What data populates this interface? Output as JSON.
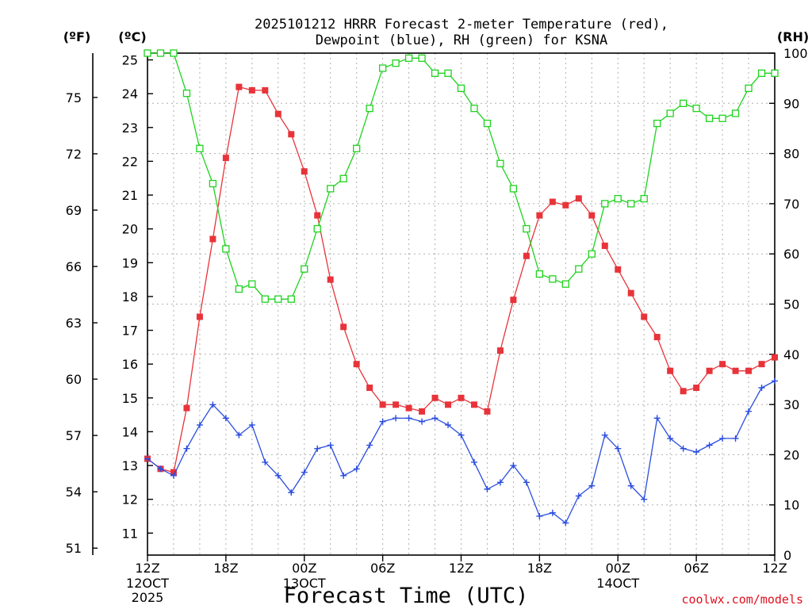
{
  "chart_data": {
    "type": "line",
    "title_line1": "2025101212 HRRR Forecast 2-meter Temperature (red),",
    "title_line2": "Dewpoint (blue), RH (green) for KSNA",
    "units": {
      "fahrenheit": "(ºF)",
      "celsius": "(ºC)",
      "rh": "(RH)"
    },
    "xlabel": "Forecast Time (UTC)",
    "credit": "coolwx.com/models",
    "x_ticks": [
      {
        "hour": 0,
        "label": "12Z",
        "sub1": "12OCT",
        "sub2": "2025"
      },
      {
        "hour": 6,
        "label": "18Z",
        "sub1": "",
        "sub2": ""
      },
      {
        "hour": 12,
        "label": "00Z",
        "sub1": "13OCT",
        "sub2": ""
      },
      {
        "hour": 18,
        "label": "06Z",
        "sub1": "",
        "sub2": ""
      },
      {
        "hour": 24,
        "label": "12Z",
        "sub1": "",
        "sub2": ""
      },
      {
        "hour": 30,
        "label": "18Z",
        "sub1": "",
        "sub2": ""
      },
      {
        "hour": 36,
        "label": "00Z",
        "sub1": "14OCT",
        "sub2": ""
      },
      {
        "hour": 42,
        "label": "06Z",
        "sub1": "",
        "sub2": ""
      },
      {
        "hour": 48,
        "label": "12Z",
        "sub1": "",
        "sub2": ""
      }
    ],
    "xlim": [
      0,
      48
    ],
    "celsius_axis": {
      "ylim": [
        10.35,
        25.2
      ],
      "ticks": [
        11,
        12,
        13,
        14,
        15,
        16,
        17,
        18,
        19,
        20,
        21,
        22,
        23,
        24,
        25
      ]
    },
    "fahrenheit_ticks": [
      51,
      54,
      57,
      60,
      63,
      66,
      69,
      72,
      75
    ],
    "rh_axis": {
      "ylim": [
        0,
        100
      ],
      "ticks": [
        0,
        10,
        20,
        30,
        40,
        50,
        60,
        70,
        80,
        90,
        100
      ]
    },
    "grid": true,
    "series": [
      {
        "name": "Temperature",
        "axis": "celsius",
        "color": "#e8333a",
        "marker": "filled-square",
        "values": [
          13.2,
          12.9,
          12.8,
          14.7,
          17.4,
          19.7,
          22.1,
          24.2,
          24.1,
          24.1,
          23.4,
          22.8,
          21.7,
          20.4,
          18.5,
          17.1,
          16.0,
          15.3,
          14.8,
          14.8,
          14.7,
          14.6,
          15.0,
          14.8,
          15.0,
          14.8,
          14.6,
          16.4,
          17.9,
          19.2,
          20.4,
          20.8,
          20.7,
          20.9,
          20.4,
          19.5,
          18.8,
          18.1,
          17.4,
          16.8,
          15.8,
          15.2,
          15.3,
          15.8,
          16.0,
          15.8,
          15.8,
          16.0,
          16.2
        ]
      },
      {
        "name": "Dewpoint",
        "axis": "celsius",
        "color": "#2a4de0",
        "marker": "plus",
        "values": [
          13.2,
          12.9,
          12.7,
          13.5,
          14.2,
          14.8,
          14.4,
          13.9,
          14.2,
          13.1,
          12.7,
          12.2,
          12.8,
          13.5,
          13.6,
          12.7,
          12.9,
          13.6,
          14.3,
          14.4,
          14.4,
          14.3,
          14.4,
          14.2,
          13.9,
          13.1,
          12.3,
          12.5,
          13.0,
          12.5,
          11.5,
          11.6,
          11.3,
          12.1,
          12.4,
          13.9,
          13.5,
          12.4,
          12.0,
          14.4,
          13.8,
          13.5,
          13.4,
          13.6,
          13.8,
          13.8,
          14.6,
          15.3,
          15.5
        ]
      },
      {
        "name": "RH",
        "axis": "rh",
        "color": "#1ed31e",
        "marker": "open-square",
        "values": [
          100,
          100,
          100,
          92,
          81,
          74,
          61,
          53,
          54,
          51,
          51,
          51,
          57,
          65,
          73,
          75,
          81,
          89,
          97,
          98,
          99,
          99,
          96,
          96,
          93,
          89,
          86,
          78,
          73,
          65,
          56,
          55,
          54,
          57,
          60,
          70,
          71,
          70,
          71,
          86,
          88,
          90,
          89,
          87,
          87,
          88,
          93,
          96,
          96
        ]
      }
    ]
  }
}
